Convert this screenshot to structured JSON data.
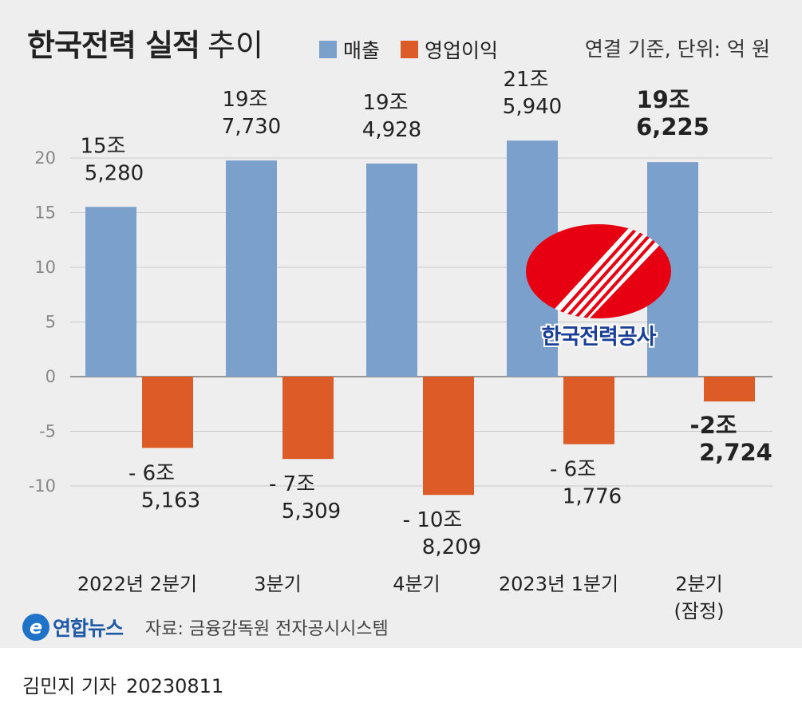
{
  "header": {
    "title_bold": "한국전력 실적",
    "title_light": "추이",
    "unit_note": "연결 기준, 단위: 억 원"
  },
  "logo": {
    "name": "한국전력공사"
  },
  "footer": {
    "brand": "연합뉴스",
    "source": "자료: 금융감독원 전자공시시스템",
    "reporter": "김민지 기자",
    "date": "20230811"
  },
  "colors": {
    "revenue": "#7ba0cb",
    "operating_profit": "#dd5b26",
    "logo_red": "#e60012",
    "logo_navy": "#1b3f96"
  },
  "chart_data": {
    "type": "bar",
    "categories": [
      "2022년 2분기",
      "3분기",
      "4분기",
      "2023년 1분기",
      "2분기\n(잠정)"
    ],
    "series": [
      {
        "name": "매출",
        "values": [
          15.528,
          19.773,
          19.4928,
          21.594,
          19.6225
        ],
        "labels": [
          "15조\n5,280",
          "19조\n7,730",
          "19조\n4,928",
          "21조\n5,940",
          "19조\n6,225"
        ]
      },
      {
        "name": "영업이익",
        "values": [
          -6.5163,
          -7.5309,
          -10.8209,
          -6.1776,
          -2.2724
        ],
        "labels": [
          "-6조\n5,163",
          "-7조\n5,309",
          "-10조\n8,209",
          "-6조\n1,776",
          "-2조\n2,724"
        ]
      }
    ],
    "value_unit": "조 원",
    "ylim": [
      -12.5,
      24
    ],
    "yticks": [
      -10,
      -5,
      0,
      5,
      10,
      15,
      20
    ],
    "grid": true,
    "highlight_index": 4,
    "legend_position": "top"
  }
}
